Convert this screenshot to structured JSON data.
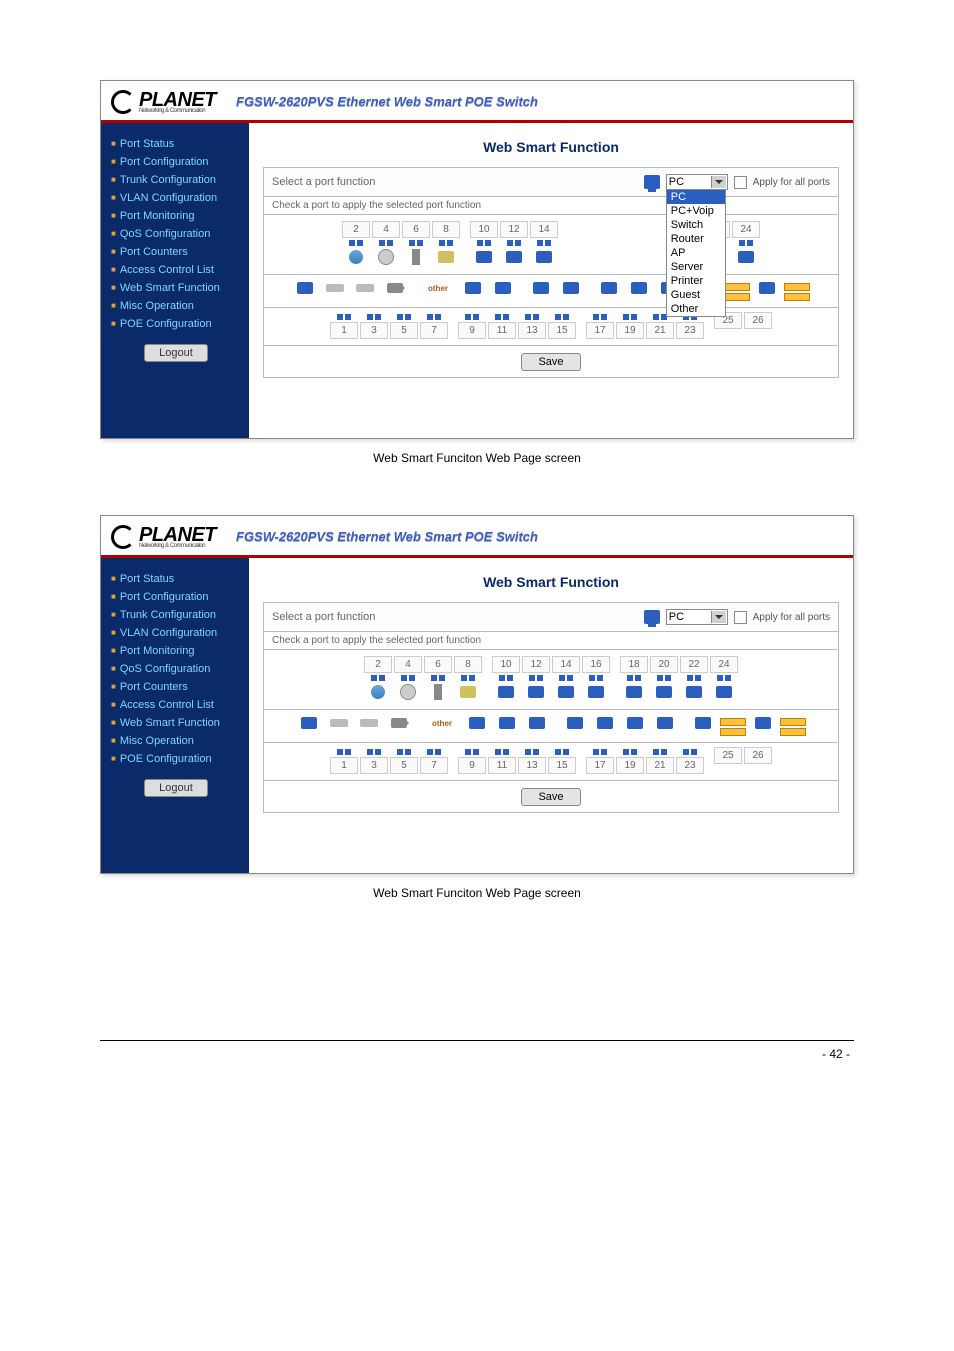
{
  "product_title": "FGSW-2620PVS Ethernet Web Smart POE Switch",
  "logo": {
    "brand": "PLANET",
    "sub": "Networking & Communication"
  },
  "sidebar": {
    "items": [
      "Port Status",
      "Port Configuration",
      "Trunk Configuration",
      "VLAN Configuration",
      "Port Monitoring",
      "QoS Configuration",
      "Port Counters",
      "Access Control List",
      "Web Smart Function",
      "Misc Operation",
      "POE Configuration"
    ],
    "logout": "Logout"
  },
  "panel": {
    "title": "Web Smart Function",
    "select_label": "Select a port function",
    "check_label": "Check a port to apply the selected port function",
    "dropdown_value": "PC",
    "dropdown_options": [
      "PC",
      "PC+Voip",
      "Switch",
      "Router",
      "AP",
      "Server",
      "Printer",
      "Guest",
      "Other"
    ],
    "apply_all": "Apply for all ports",
    "other_label": "other",
    "save": "Save",
    "top_ports": [
      "2",
      "4",
      "6",
      "8",
      "10",
      "12",
      "14",
      "16",
      "18",
      "20",
      "22",
      "24"
    ],
    "bottom_ports": [
      "1",
      "3",
      "5",
      "7",
      "9",
      "11",
      "13",
      "15",
      "17",
      "19",
      "21",
      "23",
      "25",
      "26"
    ]
  },
  "caption": "Web Smart Funciton Web Page screen",
  "page_number": "- 42 -",
  "colors": {
    "sidebar_bg": "#0a2a6a",
    "sidebar_text": "#7fd7ff",
    "bullet": "#e0a040",
    "title": "#0a2a6a",
    "accent_red": "#b00000"
  },
  "screenshot1": {
    "dropdown_open": true
  },
  "screenshot2": {
    "dropdown_open": false
  }
}
